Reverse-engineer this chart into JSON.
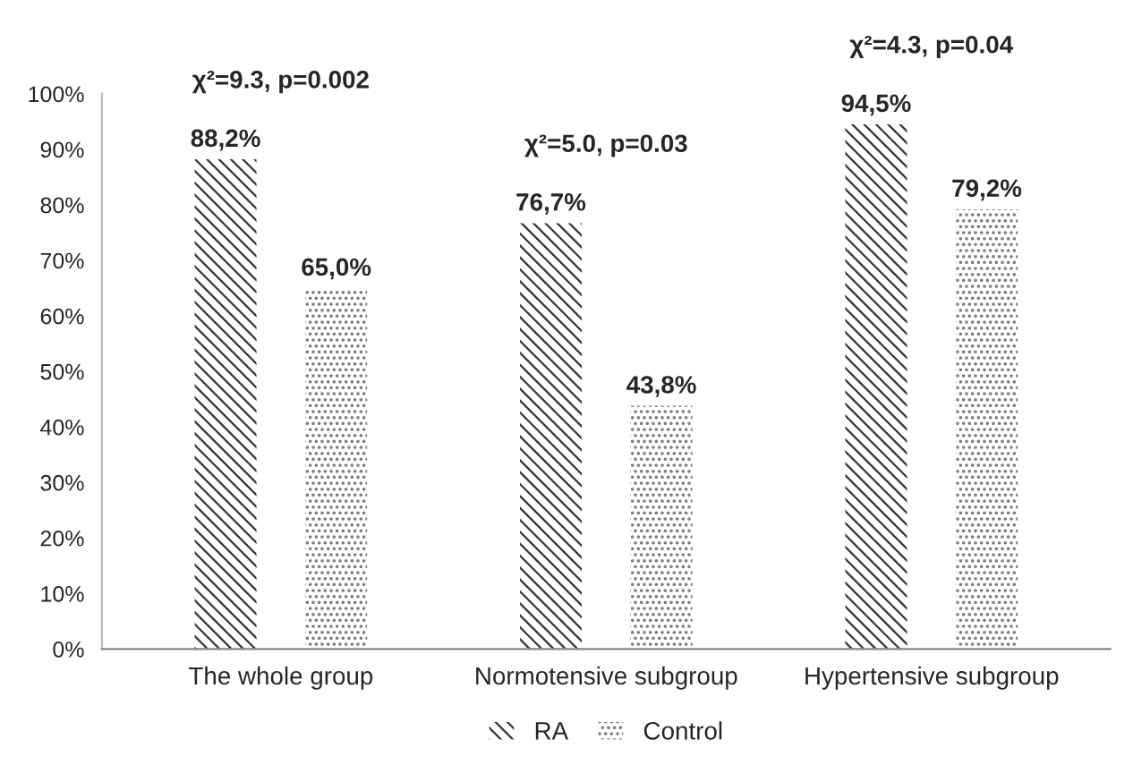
{
  "chart_data": {
    "type": "bar",
    "categories": [
      "The whole group",
      "Normotensive subgroup",
      "Hypertensive subgroup"
    ],
    "series": [
      {
        "name": "RA",
        "color": "#333333",
        "values": [
          88.2,
          76.7,
          94.5
        ],
        "value_labels": [
          "88,2%",
          "76,7%",
          "94,5%"
        ]
      },
      {
        "name": "Control",
        "color": "#777777",
        "values": [
          65.0,
          43.8,
          79.2
        ],
        "value_labels": [
          "65,0%",
          "43,8%",
          "79,2%"
        ]
      }
    ],
    "ylim": [
      0,
      100
    ],
    "yticks": [
      {
        "value": 0,
        "label": "0%"
      },
      {
        "value": 10,
        "label": "10%"
      },
      {
        "value": 20,
        "label": "20%"
      },
      {
        "value": 30,
        "label": "30%"
      },
      {
        "value": 40,
        "label": "40%"
      },
      {
        "value": 50,
        "label": "50%"
      },
      {
        "value": 60,
        "label": "60%"
      },
      {
        "value": 70,
        "label": "70%"
      },
      {
        "value": 80,
        "label": "80%"
      },
      {
        "value": 90,
        "label": "90%"
      },
      {
        "value": 100,
        "label": "100%"
      }
    ],
    "annotations": [
      "χ²=9.3, p=0.002",
      "χ²=5.0, p=0.03",
      "χ²=4.3, p=0.04"
    ],
    "grid": false,
    "legend": "bottom"
  }
}
